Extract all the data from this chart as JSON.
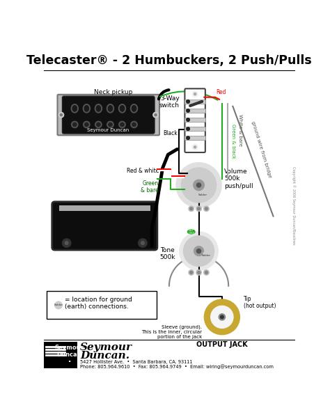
{
  "title": "Telecaster® - 2 Humbuckers, 2 Push/Pulls",
  "footer_line1": "5427 Hollister Ave.  •  Santa Barbara, CA. 93111",
  "footer_line2": "Phone: 805.964.9610  •  Fax: 805.964.9749  •  Email: wiring@seymourduncan.com",
  "copyright": "Copyright © 2006 Seymour Duncan/Basslines",
  "ground_legend": "= location for ground\n(earth) connections.",
  "neck_label": "Neck pickup",
  "switch_label": "3-Way\nswitch",
  "volume_label": "Volume\n500k\npush/pull",
  "tone_label": "Tone\n500k",
  "output_label": "OUTPUT JACK",
  "tip_label": "Tip\n(hot output)",
  "sleeve_label": "Sleeve (ground).\nThis is the inner, circular\nportion of the jack",
  "black_label": "Black",
  "red_white_label": "Red & white",
  "green_bare_label": "Green\n& bare",
  "ground_wire_label": "ground wire from bridge",
  "white_bare_label": "White & bare",
  "green_black_label": "Green & black",
  "red_label": "Red",
  "solder_label": "Solder"
}
